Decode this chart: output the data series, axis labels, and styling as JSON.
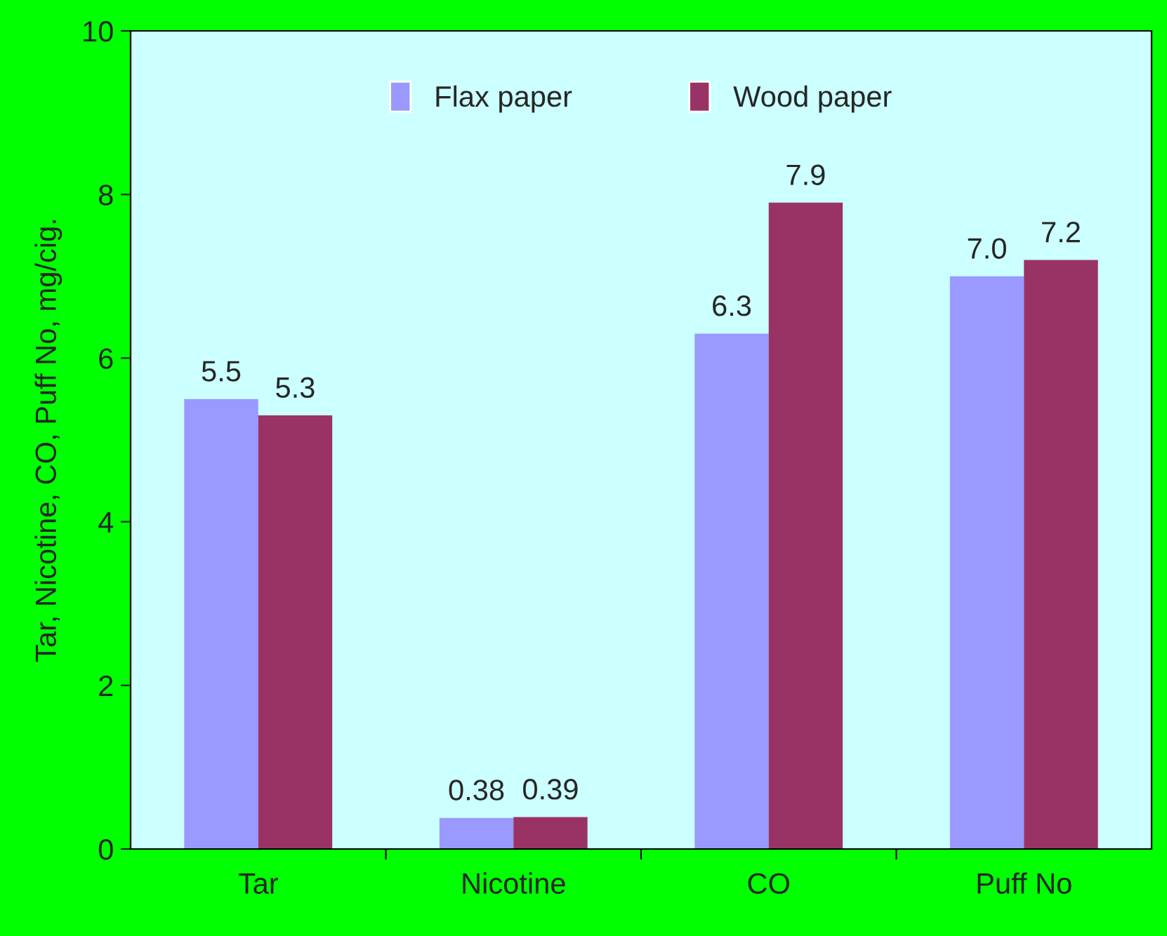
{
  "chart_data": {
    "type": "bar",
    "ylabel": "Tar, Nicotine, CO, Puff No, mg/cig.",
    "categories": [
      "Tar",
      "Nicotine",
      "CO",
      "Puff No"
    ],
    "series": [
      {
        "name": "Flax paper",
        "color": "#9999ff",
        "values": [
          5.5,
          0.38,
          6.3,
          7.0
        ],
        "value_labels": [
          "5.5",
          "0.38",
          "6.3",
          "7.0"
        ]
      },
      {
        "name": "Wood paper",
        "color": "#993366",
        "values": [
          5.3,
          0.39,
          7.9,
          7.2
        ],
        "value_labels": [
          "5.3",
          "0.39",
          "7.9",
          "7.2"
        ]
      }
    ],
    "ylim": [
      0,
      10
    ],
    "yticks": [
      0,
      2,
      4,
      6,
      8,
      10
    ],
    "grid": false,
    "legend": "top"
  }
}
